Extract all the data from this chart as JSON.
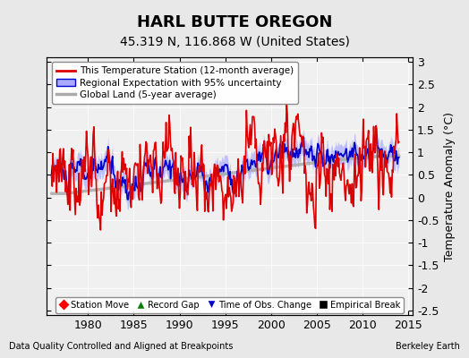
{
  "title": "HARL BUTTE OREGON",
  "subtitle": "45.319 N, 116.868 W (United States)",
  "ylabel": "Temperature Anomaly (°C)",
  "footnote_left": "Data Quality Controlled and Aligned at Breakpoints",
  "footnote_right": "Berkeley Earth",
  "xlim": [
    1975.5,
    2015.5
  ],
  "ylim": [
    -2.6,
    3.1
  ],
  "yticks": [
    -2.5,
    -2,
    -1.5,
    -1,
    -0.5,
    0,
    0.5,
    1,
    1.5,
    2,
    2.5,
    3
  ],
  "xticks": [
    1980,
    1985,
    1990,
    1995,
    2000,
    2005,
    2010,
    2015
  ],
  "red_color": "#dd0000",
  "blue_color": "#0000cc",
  "blue_fill_color": "#aaaaff",
  "gray_color": "#aaaaaa",
  "background_color": "#e8e8e8",
  "plot_bg_color": "#f0f0f0",
  "legend1_labels": [
    "This Temperature Station (12-month average)",
    "Regional Expectation with 95% uncertainty",
    "Global Land (5-year average)"
  ],
  "legend2_labels": [
    "Station Move",
    "Record Gap",
    "Time of Obs. Change",
    "Empirical Break"
  ],
  "title_fontsize": 13,
  "subtitle_fontsize": 10,
  "axis_fontsize": 9,
  "tick_fontsize": 9,
  "seed": 42
}
